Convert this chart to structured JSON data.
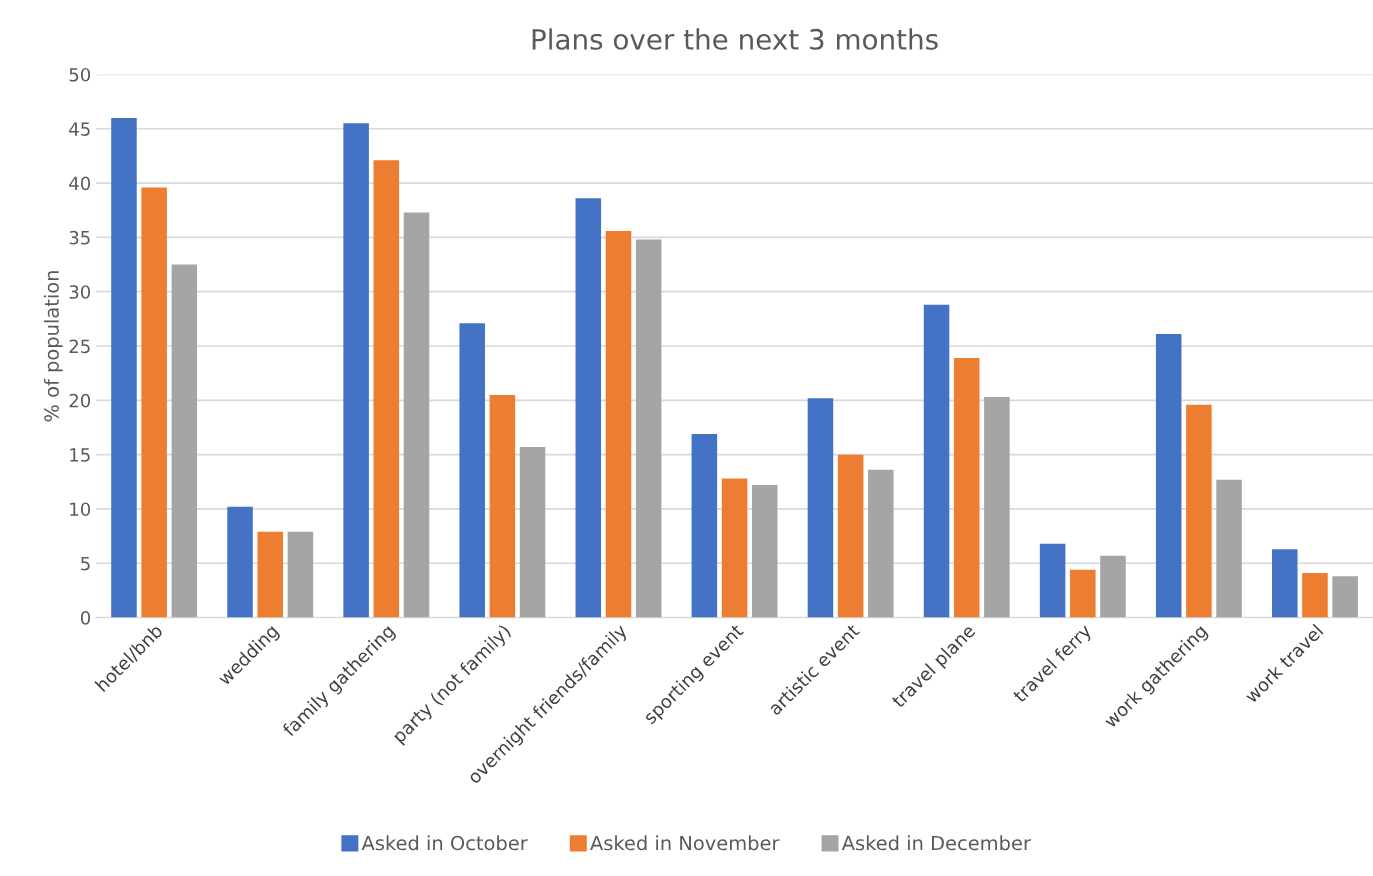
{
  "chart_data": {
    "type": "bar",
    "title": "Plans over the next 3 months",
    "ylabel": "% of population",
    "categories": [
      "hotel/bnb",
      "wedding",
      "family gathering",
      "party (not family)",
      "overnight friends/family",
      "sporting event",
      "artistic event",
      "travel plane",
      "travel ferry",
      "work gathering",
      "work travel"
    ],
    "series": [
      {
        "name": "Asked in October",
        "color": "#4472c4",
        "values": [
          46,
          10.2,
          45.5,
          27.1,
          38.6,
          16.9,
          20.2,
          28.8,
          6.8,
          26.1,
          6.3
        ]
      },
      {
        "name": "Asked in November",
        "color": "#ed7d31",
        "values": [
          39.6,
          7.9,
          42.1,
          20.5,
          35.6,
          12.8,
          15,
          23.9,
          4.4,
          19.6,
          4.1
        ]
      },
      {
        "name": "Asked in December",
        "color": "#a5a5a5",
        "values": [
          32.5,
          7.9,
          37.3,
          15.7,
          34.8,
          12.2,
          13.6,
          20.3,
          5.7,
          12.7,
          3.8
        ]
      }
    ],
    "ylim": [
      0,
      50
    ],
    "yticks": [
      0,
      5,
      10,
      15,
      20,
      25,
      30,
      35,
      40,
      45,
      50
    ],
    "grid": "y",
    "legend": "bottom"
  }
}
